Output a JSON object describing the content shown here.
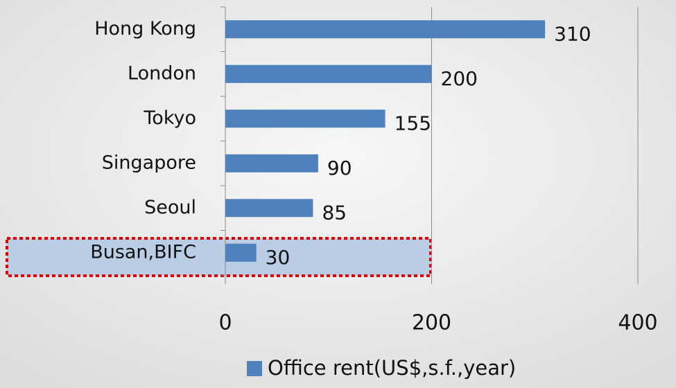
{
  "chart_data": {
    "type": "bar",
    "orientation": "horizontal",
    "categories": [
      "Hong Kong",
      "London",
      "Tokyo",
      "Singapore",
      "Seoul",
      "Busan,BIFC"
    ],
    "series": [
      {
        "name": "Office rent(US$,s.f.,year)",
        "color": "#4f81bd",
        "values": [
          310,
          200,
          155,
          90,
          85,
          30
        ]
      }
    ],
    "xlim": [
      0,
      400
    ],
    "xticks": [
      0,
      200,
      400
    ],
    "grid": true,
    "legend": "bottom"
  }
}
